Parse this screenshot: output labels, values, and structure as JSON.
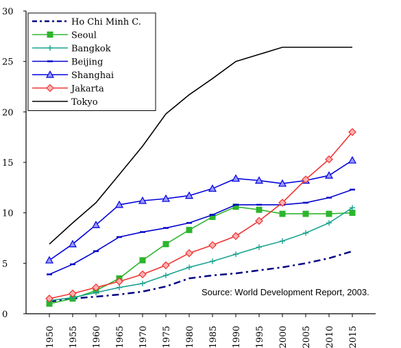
{
  "chart_data": {
    "type": "line",
    "title": "",
    "xlabel": "",
    "ylabel": "",
    "ylim": [
      0,
      30
    ],
    "xlim": [
      1945,
      2020
    ],
    "y_ticks": [
      "0",
      "5",
      "10",
      "15",
      "20",
      "25",
      "30"
    ],
    "x": [
      1950,
      1955,
      1960,
      1965,
      1970,
      1975,
      1980,
      1985,
      1990,
      1995,
      2000,
      2005,
      2010,
      2015
    ],
    "x_tick_labels": [
      "1950",
      "1955",
      "1960",
      "1965",
      "1970",
      "1975",
      "1980",
      "1985",
      "1990",
      "1995",
      "2000",
      "2005",
      "2010",
      "2015"
    ],
    "grid": false,
    "legend_position": "top-left",
    "annotation": "Source: World Development Report, 2003.",
    "series": [
      {
        "name": "Ho Chi Minh C.",
        "color": "#000080",
        "style": "dash-dot",
        "marker": "none",
        "values": [
          1.2,
          1.5,
          1.7,
          1.9,
          2.2,
          2.7,
          3.5,
          3.8,
          4.0,
          4.3,
          4.6,
          5.0,
          5.5,
          6.2
        ]
      },
      {
        "name": "Seoul",
        "color": "#2db52d",
        "style": "solid",
        "marker": "square",
        "values": [
          1.0,
          1.5,
          2.3,
          3.5,
          5.3,
          6.9,
          8.3,
          9.6,
          10.6,
          10.3,
          9.9,
          9.9,
          9.9,
          10.0
        ]
      },
      {
        "name": "Bangkok",
        "color": "#1aa391",
        "style": "solid",
        "marker": "plus",
        "values": [
          1.3,
          1.6,
          2.1,
          2.6,
          3.0,
          3.8,
          4.6,
          5.2,
          5.9,
          6.6,
          7.2,
          8.0,
          9.0,
          10.5
        ]
      },
      {
        "name": "Beijing",
        "color": "#0000cc",
        "style": "solid",
        "marker": "dash",
        "values": [
          3.9,
          4.9,
          6.2,
          7.6,
          8.1,
          8.5,
          9.0,
          9.8,
          10.8,
          10.8,
          10.8,
          11.0,
          11.5,
          12.3
        ]
      },
      {
        "name": "Shanghai",
        "color": "#0000dd",
        "style": "solid",
        "marker": "triangle",
        "values": [
          5.3,
          6.9,
          8.8,
          10.8,
          11.2,
          11.4,
          11.7,
          12.4,
          13.4,
          13.2,
          12.9,
          13.2,
          13.7,
          15.2
        ]
      },
      {
        "name": "Jakarta",
        "color": "#ee3333",
        "style": "solid",
        "marker": "diamond",
        "values": [
          1.5,
          2.0,
          2.6,
          3.2,
          3.9,
          4.8,
          6.0,
          6.8,
          7.7,
          9.2,
          11.0,
          13.3,
          15.3,
          18.0
        ]
      },
      {
        "name": "Tokyo",
        "color": "#000000",
        "style": "solid",
        "marker": "none",
        "values": [
          6.9,
          9.0,
          11.0,
          13.8,
          16.6,
          19.8,
          21.7,
          23.3,
          25.0,
          25.7,
          26.4,
          26.4,
          26.4,
          26.4
        ]
      }
    ]
  }
}
